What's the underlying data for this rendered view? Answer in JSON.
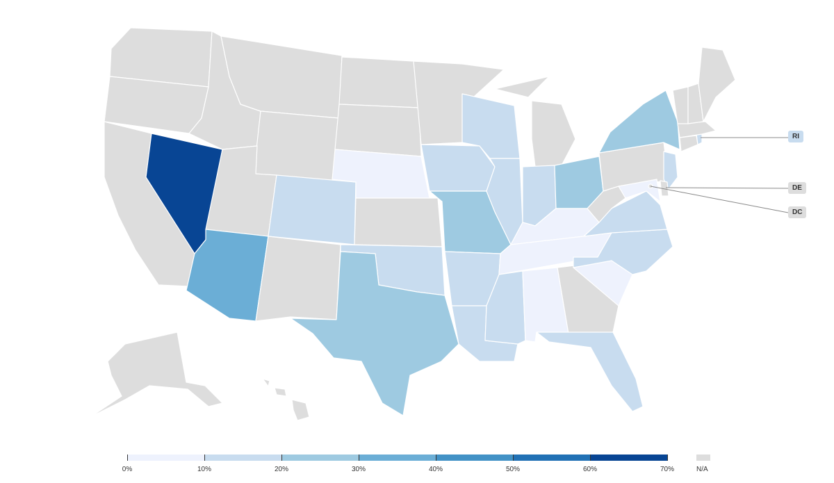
{
  "colors": {
    "na": "#dddddd",
    "scale": [
      "#eef2fd",
      "#c8dcef",
      "#9ecae1",
      "#6baed6",
      "#4292c6",
      "#2171b5",
      "#084594"
    ]
  },
  "states": {
    "WA": "na",
    "OR": "na",
    "CA": "na",
    "ID": "na",
    "MT": "na",
    "WY": "na",
    "UT": "na",
    "NV": 6,
    "AZ": 3,
    "CO": 1,
    "NM": "na",
    "ND": "na",
    "SD": "na",
    "NE": 0,
    "KS": "na",
    "OK": 1,
    "TX": 2,
    "MN": "na",
    "IA": 1,
    "MO": 2,
    "AR": 1,
    "LA": 1,
    "WI": 1,
    "IL": 1,
    "MI": "na",
    "IN": 1,
    "OH": 2,
    "KY": 0,
    "TN": 0,
    "MS": 1,
    "AL": 0,
    "GA": "na",
    "FL": 1,
    "SC": 0,
    "NC": 1,
    "VA": 1,
    "WV": "na",
    "PA": "na",
    "NY": 2,
    "NJ": 1,
    "DE": "na",
    "MD": 0,
    "DC": "na",
    "CT": "na",
    "RI": 1,
    "MA": "na",
    "VT": "na",
    "NH": "na",
    "ME": "na",
    "AK": "na",
    "HI": "na"
  },
  "callouts": [
    {
      "code": "RI",
      "label": "RI",
      "bin": 1
    },
    {
      "code": "DE",
      "label": "DE",
      "bin": "na"
    },
    {
      "code": "DC",
      "label": "DC",
      "bin": "na"
    }
  ],
  "legend": {
    "ticks": [
      "0%",
      "10%",
      "20%",
      "30%",
      "40%",
      "50%",
      "60%",
      "70%"
    ],
    "na_label": "N/A"
  }
}
